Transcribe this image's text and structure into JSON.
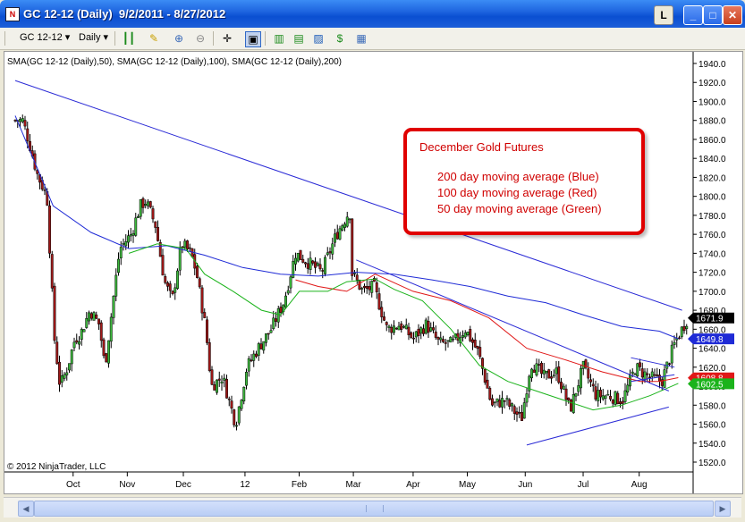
{
  "window": {
    "title": "GC 12-12 (Daily)  9/2/2011 - 8/27/2012",
    "buttons": {
      "lock": "L",
      "minimize": "_",
      "maximize": "□",
      "close": "✕"
    }
  },
  "toolbar": {
    "instrument": "GC 12-12",
    "period": "Daily",
    "icons": [
      "bar-style-icon",
      "pencil-drawing-icon",
      "magnifier-plus-icon",
      "magnifier-minus-icon",
      "crosshair-icon",
      "zoom-box-icon",
      "data-series-icon",
      "indicators-icon",
      "strategies-icon",
      "dollar-icon",
      "properties-icon"
    ]
  },
  "chart": {
    "indicator_label": "SMA(GC 12-12 (Daily),50), SMA(GC 12-12 (Daily),100), SMA(GC 12-12 (Daily),200)",
    "copyright": "© 2012 NinjaTrader, LLC",
    "annotation": {
      "title": "December Gold Futures",
      "lines": [
        "200 day moving average (Blue)",
        "100 day moving average (Red)",
        "50 day moving average (Green)"
      ]
    },
    "price_markers": [
      {
        "value": "1671.9",
        "color": "#000000"
      },
      {
        "value": "1649.8",
        "color": "#1f2bd6"
      },
      {
        "value": "1608.8",
        "color": "#e01818"
      },
      {
        "value": "1602.5",
        "color": "#1bb31b"
      }
    ]
  },
  "chart_data": {
    "type": "candlestick",
    "title": "",
    "ylim": [
      1510,
      1950
    ],
    "y_ticks": [
      "1520.0",
      "1540.0",
      "1560.0",
      "1580.0",
      "1600.0",
      "1620.0",
      "1640.0",
      "1660.0",
      "1680.0",
      "1700.0",
      "1720.0",
      "1740.0",
      "1760.0",
      "1780.0",
      "1800.0",
      "1820.0",
      "1840.0",
      "1860.0",
      "1880.0",
      "1900.0",
      "1920.0",
      "1940.0"
    ],
    "x_ticks": [
      "Oct",
      "Nov",
      "Dec",
      "12",
      "Feb",
      "Mar",
      "Apr",
      "May",
      "Jun",
      "Jul",
      "Aug"
    ],
    "close_series": [
      [
        "2011-09-06",
        1880
      ],
      [
        "2011-09-09",
        1860
      ],
      [
        "2011-09-14",
        1822
      ],
      [
        "2011-09-19",
        1800
      ],
      [
        "2011-09-23",
        1650
      ],
      [
        "2011-09-26",
        1600
      ],
      [
        "2011-09-30",
        1620
      ],
      [
        "2011-10-04",
        1650
      ],
      [
        "2011-10-07",
        1655
      ],
      [
        "2011-10-12",
        1680
      ],
      [
        "2011-10-17",
        1665
      ],
      [
        "2011-10-20",
        1620
      ],
      [
        "2011-10-25",
        1700
      ],
      [
        "2011-10-28",
        1745
      ],
      [
        "2011-11-03",
        1760
      ],
      [
        "2011-11-08",
        1790
      ],
      [
        "2011-11-11",
        1795
      ],
      [
        "2011-11-16",
        1770
      ],
      [
        "2011-11-21",
        1710
      ],
      [
        "2011-11-25",
        1690
      ],
      [
        "2011-11-30",
        1750
      ],
      [
        "2011-12-05",
        1740
      ],
      [
        "2011-12-08",
        1720
      ],
      [
        "2011-12-13",
        1660
      ],
      [
        "2011-12-16",
        1600
      ],
      [
        "2011-12-22",
        1610
      ],
      [
        "2011-12-29",
        1560
      ],
      [
        "2012-01-04",
        1620
      ],
      [
        "2012-01-10",
        1640
      ],
      [
        "2012-01-17",
        1660
      ],
      [
        "2012-01-24",
        1690
      ],
      [
        "2012-01-30",
        1740
      ],
      [
        "2012-02-06",
        1730
      ],
      [
        "2012-02-13",
        1720
      ],
      [
        "2012-02-21",
        1760
      ],
      [
        "2012-02-28",
        1785
      ],
      [
        "2012-02-29",
        1720
      ],
      [
        "2012-03-06",
        1700
      ],
      [
        "2012-03-12",
        1705
      ],
      [
        "2012-03-19",
        1660
      ],
      [
        "2012-03-26",
        1665
      ],
      [
        "2012-04-02",
        1650
      ],
      [
        "2012-04-09",
        1665
      ],
      [
        "2012-04-16",
        1645
      ],
      [
        "2012-04-23",
        1645
      ],
      [
        "2012-04-30",
        1660
      ],
      [
        "2012-05-07",
        1635
      ],
      [
        "2012-05-14",
        1580
      ],
      [
        "2012-05-21",
        1585
      ],
      [
        "2012-05-30",
        1565
      ],
      [
        "2012-06-04",
        1625
      ],
      [
        "2012-06-11",
        1610
      ],
      [
        "2012-06-18",
        1615
      ],
      [
        "2012-06-25",
        1575
      ],
      [
        "2012-07-02",
        1620
      ],
      [
        "2012-07-09",
        1590
      ],
      [
        "2012-07-16",
        1590
      ],
      [
        "2012-07-23",
        1585
      ],
      [
        "2012-07-30",
        1620
      ],
      [
        "2012-08-06",
        1610
      ],
      [
        "2012-08-13",
        1605
      ],
      [
        "2012-08-20",
        1645
      ],
      [
        "2012-08-27",
        1672
      ]
    ],
    "series": [
      {
        "name": "200 day moving average (Blue)",
        "color": "#1f2bd6",
        "values": [
          [
            0,
            1885
          ],
          [
            20,
            1790
          ],
          [
            40,
            1762
          ],
          [
            60,
            1745
          ],
          [
            80,
            1748
          ],
          [
            100,
            1738
          ],
          [
            120,
            1725
          ],
          [
            140,
            1718
          ],
          [
            160,
            1716
          ],
          [
            180,
            1720
          ],
          [
            200,
            1718
          ],
          [
            220,
            1712
          ],
          [
            240,
            1705
          ],
          [
            260,
            1695
          ],
          [
            280,
            1688
          ],
          [
            300,
            1675
          ],
          [
            320,
            1663
          ],
          [
            340,
            1658
          ],
          [
            350,
            1650
          ]
        ]
      },
      {
        "name": "100 day moving average (Red)",
        "color": "#e01818",
        "values": [
          [
            148,
            1712
          ],
          [
            160,
            1705
          ],
          [
            175,
            1700
          ],
          [
            190,
            1718
          ],
          [
            210,
            1700
          ],
          [
            230,
            1690
          ],
          [
            250,
            1672
          ],
          [
            270,
            1640
          ],
          [
            290,
            1628
          ],
          [
            310,
            1615
          ],
          [
            330,
            1605
          ],
          [
            340,
            1605
          ],
          [
            350,
            1609
          ]
        ]
      },
      {
        "name": "50 day moving average (Green)",
        "color": "#1bb31b",
        "values": [
          [
            60,
            1740
          ],
          [
            75,
            1750
          ],
          [
            90,
            1745
          ],
          [
            100,
            1718
          ],
          [
            115,
            1700
          ],
          [
            130,
            1680
          ],
          [
            140,
            1675
          ],
          [
            150,
            1700
          ],
          [
            165,
            1700
          ],
          [
            175,
            1710
          ],
          [
            190,
            1713
          ],
          [
            200,
            1702
          ],
          [
            215,
            1690
          ],
          [
            230,
            1660
          ],
          [
            245,
            1622
          ],
          [
            260,
            1605
          ],
          [
            275,
            1595
          ],
          [
            290,
            1585
          ],
          [
            305,
            1575
          ],
          [
            320,
            1580
          ],
          [
            335,
            1590
          ],
          [
            350,
            1603
          ]
        ]
      }
    ],
    "trendlines": [
      {
        "name": "long-term-downtrend",
        "from": [
          0,
          1922
        ],
        "to": [
          352,
          1680
        ]
      },
      {
        "name": "spring-downtrend",
        "from": [
          180,
          1733
        ],
        "to": [
          345,
          1595
        ]
      },
      {
        "name": "triangle-support",
        "from": [
          270,
          1538
        ],
        "to": [
          345,
          1578
        ]
      },
      {
        "name": "flag-upper",
        "from": [
          325,
          1630
        ],
        "to": [
          348,
          1620
        ]
      },
      {
        "name": "flag-lower",
        "from": [
          325,
          1605
        ],
        "to": [
          348,
          1612
        ]
      }
    ]
  }
}
